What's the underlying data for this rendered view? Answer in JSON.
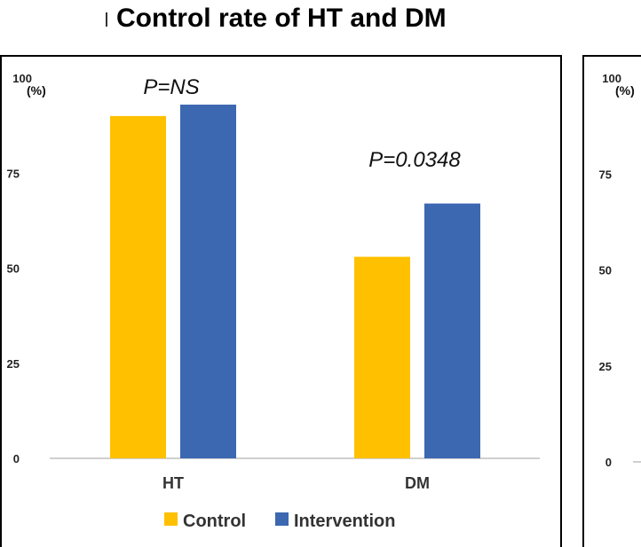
{
  "title": "Control rate of HT and DM",
  "chart_data": [
    {
      "type": "bar",
      "title": "Control rate of HT and DM",
      "ylabel": "(%)",
      "ylim": [
        0,
        100
      ],
      "yticks": [
        "0",
        "25",
        "50",
        "75",
        "100"
      ],
      "grid": false,
      "legend_position": "bottom",
      "categories": [
        "HT",
        "DM"
      ],
      "series": [
        {
          "name": "Control",
          "color": "#FFC000",
          "values": [
            90,
            53
          ]
        },
        {
          "name": "Intervention",
          "color": "#3C67B1",
          "values": [
            93,
            67
          ]
        }
      ],
      "annotations": [
        {
          "category": "HT",
          "text": "P=NS"
        },
        {
          "category": "DM",
          "text": "P=0.0348"
        }
      ]
    },
    {
      "type": "bar",
      "title": "",
      "ylabel": "(%)",
      "ylim": [
        0,
        100
      ],
      "yticks": [
        "0",
        "25",
        "50",
        "75",
        "100"
      ],
      "grid": false,
      "categories": [],
      "series": [],
      "note": "second panel is cut off at the right edge; only its y-axis ticks are visible"
    }
  ],
  "colors": {
    "control": "#FFC000",
    "intervention": "#3C67B1",
    "axis": "#BFBFBF",
    "frame": "#000000"
  }
}
